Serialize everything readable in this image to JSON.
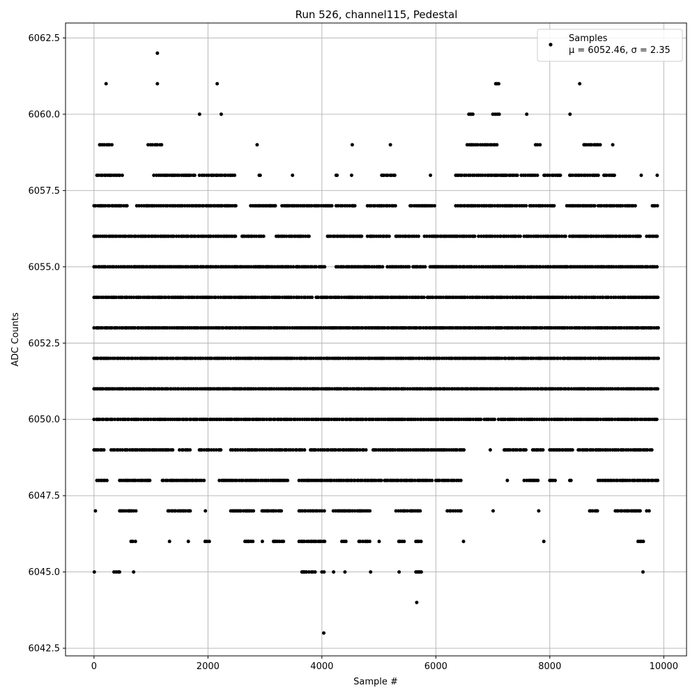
{
  "chart_data": {
    "type": "scatter",
    "title": "Run 526, channel115, Pedestal",
    "xlabel": "Sample #",
    "ylabel": "ADC Counts",
    "xlim": [
      -500,
      10400
    ],
    "ylim": [
      6042.25,
      6062.99
    ],
    "xticks": [
      0,
      2000,
      4000,
      6000,
      8000,
      10000
    ],
    "yticks": [
      6042.5,
      6045.0,
      6047.5,
      6050.0,
      6052.5,
      6055.0,
      6057.5,
      6060.0,
      6062.5
    ],
    "grid": true,
    "legend_position": "top-right",
    "marker_color": "#000000",
    "series": [
      {
        "name": "Samples",
        "stats_label": "μ = 6052.46, σ = 2.35",
        "n_samples": 10000,
        "mean": 6052.46,
        "std": 2.35,
        "level_ranges": [
          {
            "y": 6062,
            "ranges": [
              [
                1110,
                1115
              ]
            ]
          },
          {
            "y": 6061,
            "ranges": [
              [
                210,
                215
              ],
              [
                1110,
                1115
              ],
              [
                2160,
                2165
              ],
              [
                7050,
                7110
              ],
              [
                8520,
                8530
              ]
            ]
          },
          {
            "y": 6060,
            "ranges": [
              [
                1850,
                1855
              ],
              [
                2230,
                2235
              ],
              [
                6580,
                6650
              ],
              [
                7000,
                7130
              ],
              [
                7590,
                7600
              ],
              [
                8350,
                8360
              ]
            ]
          },
          {
            "y": 6059,
            "ranges": [
              [
                100,
                350
              ],
              [
                950,
                1200
              ],
              [
                2860,
                2865
              ],
              [
                4530,
                4535
              ],
              [
                5200,
                5205
              ],
              [
                6550,
                7100
              ],
              [
                7750,
                7850
              ],
              [
                8600,
                8900
              ],
              [
                9100,
                9110
              ]
            ]
          },
          {
            "y": 6058,
            "ranges": [
              [
                50,
                500
              ],
              [
                1050,
                1800
              ],
              [
                1850,
                2500
              ],
              [
                2900,
                2960
              ],
              [
                3480,
                3490
              ],
              [
                4250,
                4300
              ],
              [
                4520,
                4540
              ],
              [
                5050,
                5280
              ],
              [
                5900,
                5910
              ],
              [
                6350,
                7450
              ],
              [
                7500,
                7800
              ],
              [
                7900,
                8200
              ],
              [
                8350,
                8850
              ],
              [
                8950,
                9150
              ],
              [
                9600,
                9610
              ],
              [
                9880,
                9890
              ]
            ]
          },
          {
            "y": 6057,
            "ranges": [
              [
                0,
                600
              ],
              [
                750,
                2500
              ],
              [
                2750,
                3200
              ],
              [
                3300,
                4200
              ],
              [
                4250,
                4600
              ],
              [
                4800,
                5300
              ],
              [
                5550,
                6000
              ],
              [
                6350,
                7600
              ],
              [
                7650,
                8100
              ],
              [
                8300,
                8800
              ],
              [
                8850,
                9500
              ],
              [
                9800,
                9900
              ]
            ]
          },
          {
            "y": 6056,
            "ranges": [
              [
                0,
                2500
              ],
              [
                2600,
                3000
              ],
              [
                3200,
                3800
              ],
              [
                4100,
                4700
              ],
              [
                4800,
                5200
              ],
              [
                5300,
                5700
              ],
              [
                5800,
                6700
              ],
              [
                6750,
                7500
              ],
              [
                7550,
                8300
              ],
              [
                8350,
                9600
              ],
              [
                9700,
                9900
              ]
            ]
          },
          {
            "y": 6055,
            "ranges": [
              [
                0,
                3500
              ],
              [
                3550,
                3900
              ],
              [
                3950,
                4050
              ],
              [
                4250,
                5100
              ],
              [
                5150,
                5550
              ],
              [
                5600,
                5850
              ],
              [
                5900,
                9900
              ]
            ]
          },
          {
            "y": 6054,
            "ranges": [
              [
                0,
                3850
              ],
              [
                3900,
                5800
              ],
              [
                5850,
                9910
              ]
            ]
          },
          {
            "y": 6053,
            "ranges": [
              [
                0,
                9910
              ]
            ]
          },
          {
            "y": 6052,
            "ranges": [
              [
                0,
                9910
              ]
            ]
          },
          {
            "y": 6051,
            "ranges": [
              [
                0,
                9910
              ]
            ]
          },
          {
            "y": 6050,
            "ranges": [
              [
                0,
                6800
              ],
              [
                6850,
                7050
              ],
              [
                7100,
                9910
              ]
            ]
          },
          {
            "y": 6049,
            "ranges": [
              [
                0,
                200
              ],
              [
                300,
                1400
              ],
              [
                1500,
                1700
              ],
              [
                1850,
                2250
              ],
              [
                2400,
                3700
              ],
              [
                3800,
                4800
              ],
              [
                4900,
                6500
              ],
              [
                6950,
                6960
              ],
              [
                7200,
                7600
              ],
              [
                7700,
                7900
              ],
              [
                8000,
                8400
              ],
              [
                8500,
                9800
              ]
            ]
          },
          {
            "y": 6048,
            "ranges": [
              [
                50,
                250
              ],
              [
                450,
                1000
              ],
              [
                1200,
                1950
              ],
              [
                2200,
                3400
              ],
              [
                3600,
                5050
              ],
              [
                5100,
                5950
              ],
              [
                6000,
                6450
              ],
              [
                7250,
                7260
              ],
              [
                7550,
                7800
              ],
              [
                8000,
                8100
              ],
              [
                8350,
                8400
              ],
              [
                8850,
                9900
              ]
            ]
          },
          {
            "y": 6047,
            "ranges": [
              [
                20,
                30
              ],
              [
                450,
                750
              ],
              [
                1300,
                1700
              ],
              [
                1950,
                1960
              ],
              [
                2400,
                2800
              ],
              [
                2950,
                3300
              ],
              [
                3600,
                4050
              ],
              [
                4200,
                4850
              ],
              [
                5300,
                5750
              ],
              [
                6200,
                6450
              ],
              [
                7000,
                7010
              ],
              [
                7800,
                7810
              ],
              [
                8700,
                8850
              ],
              [
                9150,
                9600
              ],
              [
                9700,
                9750
              ]
            ]
          },
          {
            "y": 6046,
            "ranges": [
              [
                650,
                750
              ],
              [
                1320,
                1330
              ],
              [
                1650,
                1660
              ],
              [
                1950,
                2050
              ],
              [
                2650,
                2800
              ],
              [
                2950,
                2960
              ],
              [
                3150,
                3350
              ],
              [
                3600,
                4050
              ],
              [
                4350,
                4450
              ],
              [
                4650,
                4850
              ],
              [
                5000,
                5010
              ],
              [
                5350,
                5450
              ],
              [
                5650,
                5750
              ],
              [
                6480,
                6490
              ],
              [
                7890,
                7900
              ],
              [
                9550,
                9650
              ]
            ]
          },
          {
            "y": 6045,
            "ranges": [
              [
                0,
                10
              ],
              [
                350,
                450
              ],
              [
                690,
                700
              ],
              [
                3650,
                3900
              ],
              [
                4000,
                4050
              ],
              [
                4200,
                4210
              ],
              [
                4400,
                4410
              ],
              [
                4850,
                4860
              ],
              [
                5350,
                5360
              ],
              [
                5650,
                5750
              ],
              [
                9630,
                9640
              ]
            ]
          },
          {
            "y": 6044,
            "ranges": [
              [
                5660,
                5670
              ]
            ]
          },
          {
            "y": 6043,
            "ranges": [
              [
                4030,
                4035
              ]
            ]
          }
        ]
      }
    ]
  }
}
